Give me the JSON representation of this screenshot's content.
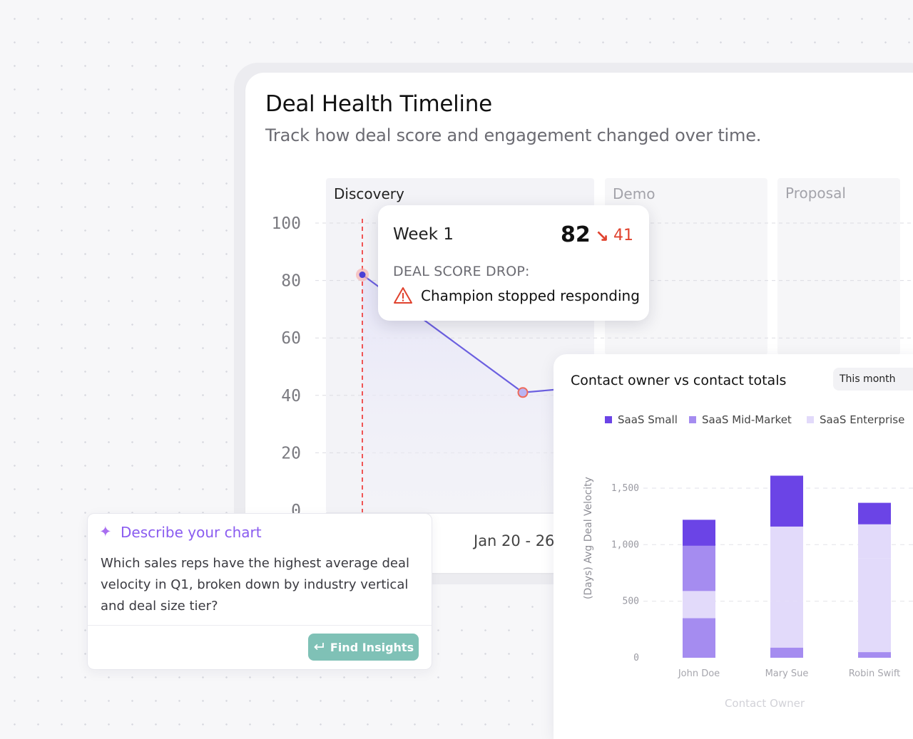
{
  "page": {
    "title": "Deal Health Timeline",
    "subtitle": "Track how deal score and engagement changed over time."
  },
  "chart_data": [
    {
      "type": "line",
      "stages": [
        "Discovery",
        "Demo",
        "Proposal"
      ],
      "y_ticks": [
        "100",
        "80",
        "60",
        "40",
        "20",
        "0"
      ],
      "ylim": [
        0,
        100
      ],
      "x_tick_label": "Jan 20 - 26",
      "points": [
        {
          "label": "Week 1",
          "y": 82
        },
        {
          "label": "",
          "y": 41
        },
        {
          "label": "",
          "y": 42
        }
      ],
      "grid": true,
      "colors": {
        "line": "#6b5fe0",
        "marker_line": "#ef4444"
      }
    },
    {
      "type": "bar",
      "stacked": true,
      "title": "Contact owner vs contact totals",
      "period": "This month",
      "categories": [
        "John Doe",
        "Mary Sue",
        "Robin Swift"
      ],
      "xlabel": "Contact Owner",
      "ylabel": "(Days) Avg Deal Velocity",
      "y_ticks": [
        "1,500",
        "1,000",
        "500",
        "0"
      ],
      "ylim": [
        0,
        1600
      ],
      "legend_position": "top",
      "legend": [
        {
          "name": "SaaS Small",
          "color": "#6b44e6"
        },
        {
          "name": "SaaS Mid-Market",
          "color": "#a58cf0"
        },
        {
          "name": "SaaS Enterprise",
          "color": "#e2dafa"
        }
      ],
      "series": [
        {
          "values": [
            350,
            0,
            50
          ],
          "color": "#a58cf0"
        },
        {
          "values": [
            0,
            90,
            0
          ],
          "color": "#a58cf0"
        },
        {
          "values": [
            240,
            410,
            830
          ],
          "color": "#e2dafa"
        },
        {
          "values": [
            0,
            0,
            0
          ],
          "color": "#a58cf0"
        },
        {
          "values": [
            400,
            0,
            0
          ],
          "color": "#a58cf0"
        },
        {
          "values": [
            0,
            660,
            300
          ],
          "color": "#e2dafa"
        },
        {
          "values": [
            230,
            450,
            190
          ],
          "color": "#6b44e6"
        }
      ]
    }
  ],
  "tooltip": {
    "week": "Week 1",
    "score": "82",
    "arrow": "↘",
    "delta": "41",
    "label": "DEAL SCORE DROP:",
    "reason": "Champion stopped responding"
  },
  "prompt": {
    "title": "Describe your chart",
    "text": "Which sales reps have the highest average deal velocity in Q1, broken down by industry vertical and deal size tier?",
    "button": "Find Insights"
  }
}
